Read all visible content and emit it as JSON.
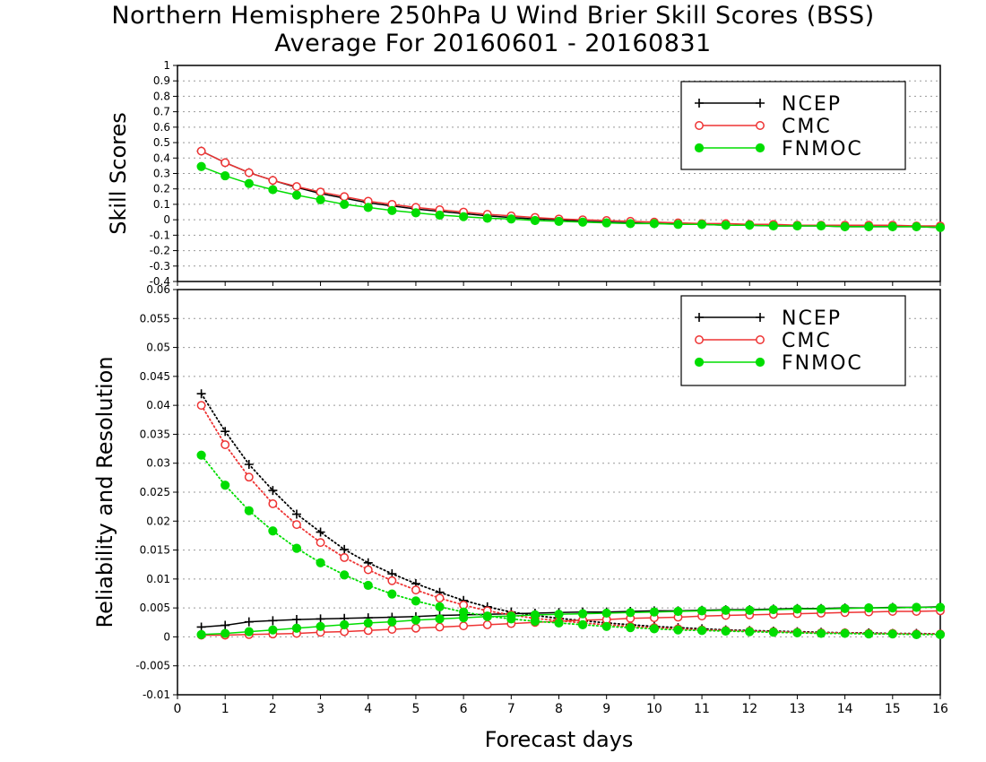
{
  "title": {
    "line1": "Northern Hemisphere 250hPa U Wind Brier Skill Scores (BSS)",
    "line2": "Average For 20160601 - 20160831"
  },
  "colors": {
    "NCEP": "#000000",
    "CMC": "#ee3333",
    "FNMOC": "#00dd00",
    "grid": "#999999"
  },
  "chart_data": [
    {
      "type": "line",
      "panel": "top",
      "xlabel": "",
      "ylabel": "Skill Scores",
      "xlim": [
        0,
        16
      ],
      "ylim": [
        -0.4,
        1
      ],
      "x_ticks": [
        0,
        1,
        2,
        3,
        4,
        5,
        6,
        7,
        8,
        9,
        10,
        11,
        12,
        13,
        14,
        15,
        16
      ],
      "y_ticks": [
        "-0.4",
        "-0.3",
        "-0.2",
        "-0.1",
        "0",
        "0.1",
        "0.2",
        "0.3",
        "0.4",
        "0.5",
        "0.6",
        "0.7",
        "0.8",
        "0.9",
        "1"
      ],
      "grid": true,
      "legend_position": "top-right",
      "x": [
        0.5,
        1,
        1.5,
        2,
        2.5,
        3,
        3.5,
        4,
        4.5,
        5,
        5.5,
        6,
        6.5,
        7,
        7.5,
        8,
        8.5,
        9,
        9.5,
        10,
        10.5,
        11,
        11.5,
        12,
        12.5,
        13,
        13.5,
        14,
        14.5,
        15,
        15.5,
        16
      ],
      "series": [
        {
          "name": "NCEP",
          "marker": "plus",
          "line": "solid",
          "values": [
            0.445,
            0.37,
            0.305,
            0.255,
            0.21,
            0.17,
            0.14,
            0.11,
            0.09,
            0.07,
            0.055,
            0.04,
            0.025,
            0.015,
            0.005,
            0.0,
            -0.01,
            -0.015,
            -0.02,
            -0.025,
            -0.025,
            -0.03,
            -0.035,
            -0.035,
            -0.04,
            -0.04,
            -0.04,
            -0.045,
            -0.045,
            -0.045,
            -0.045,
            -0.05
          ]
        },
        {
          "name": "CMC",
          "marker": "open-circle",
          "line": "solid",
          "values": [
            0.445,
            0.37,
            0.305,
            0.255,
            0.215,
            0.18,
            0.15,
            0.12,
            0.1,
            0.08,
            0.065,
            0.05,
            0.035,
            0.025,
            0.015,
            0.005,
            0.0,
            -0.005,
            -0.01,
            -0.015,
            -0.02,
            -0.025,
            -0.025,
            -0.03,
            -0.03,
            -0.035,
            -0.035,
            -0.035,
            -0.035,
            -0.035,
            -0.04,
            -0.04
          ]
        },
        {
          "name": "FNMOC",
          "marker": "filled-circle",
          "line": "solid",
          "values": [
            0.345,
            0.285,
            0.235,
            0.195,
            0.16,
            0.13,
            0.1,
            0.08,
            0.06,
            0.045,
            0.03,
            0.02,
            0.01,
            0.005,
            -0.005,
            -0.01,
            -0.015,
            -0.02,
            -0.025,
            -0.025,
            -0.03,
            -0.03,
            -0.035,
            -0.035,
            -0.04,
            -0.04,
            -0.04,
            -0.045,
            -0.045,
            -0.045,
            -0.045,
            -0.05
          ]
        }
      ]
    },
    {
      "type": "line",
      "panel": "bottom",
      "xlabel": "Forecast days",
      "ylabel": "Reliability and Resolution",
      "xlim": [
        0,
        16
      ],
      "ylim": [
        -0.01,
        0.06
      ],
      "x_ticks": [
        0,
        1,
        2,
        3,
        4,
        5,
        6,
        7,
        8,
        9,
        10,
        11,
        12,
        13,
        14,
        15,
        16
      ],
      "y_ticks": [
        "-0.01",
        "-0.005",
        "0",
        "0.005",
        "0.01",
        "0.015",
        "0.02",
        "0.025",
        "0.03",
        "0.035",
        "0.04",
        "0.045",
        "0.05",
        "0.055",
        "0.06"
      ],
      "grid": true,
      "legend_position": "top-right",
      "x": [
        0.5,
        1,
        1.5,
        2,
        2.5,
        3,
        3.5,
        4,
        4.5,
        5,
        5.5,
        6,
        6.5,
        7,
        7.5,
        8,
        8.5,
        9,
        9.5,
        10,
        10.5,
        11,
        11.5,
        12,
        12.5,
        13,
        13.5,
        14,
        14.5,
        15,
        15.5,
        16
      ],
      "series": [
        {
          "name": "NCEP",
          "component": "reliability",
          "marker": "plus",
          "line": "dotted",
          "values": [
            0.042,
            0.0355,
            0.0298,
            0.0253,
            0.0212,
            0.0181,
            0.0151,
            0.0128,
            0.0109,
            0.0092,
            0.0077,
            0.0063,
            0.0052,
            0.0043,
            0.0037,
            0.0032,
            0.0028,
            0.0024,
            0.0021,
            0.0018,
            0.0016,
            0.0014,
            0.0012,
            0.0011,
            0.001,
            0.0009,
            0.0008,
            0.0007,
            0.0007,
            0.0006,
            0.0006,
            0.0005
          ]
        },
        {
          "name": "NCEP",
          "component": "resolution",
          "marker": "plus",
          "line": "solid",
          "values": [
            0.0017,
            0.002,
            0.0026,
            0.0028,
            0.003,
            0.0031,
            0.0032,
            0.0033,
            0.0034,
            0.0035,
            0.0037,
            0.0038,
            0.0039,
            0.004,
            0.0041,
            0.0042,
            0.0043,
            0.0043,
            0.0044,
            0.0045,
            0.0045,
            0.0046,
            0.0047,
            0.0047,
            0.0048,
            0.0049,
            0.0049,
            0.005,
            0.005,
            0.0051,
            0.0051,
            0.0052
          ]
        },
        {
          "name": "CMC",
          "component": "reliability",
          "marker": "open-circle",
          "line": "dotted",
          "values": [
            0.04,
            0.0332,
            0.0276,
            0.023,
            0.0194,
            0.0163,
            0.0137,
            0.0116,
            0.0097,
            0.0081,
            0.0067,
            0.0055,
            0.0045,
            0.0038,
            0.0032,
            0.0028,
            0.0024,
            0.0021,
            0.0018,
            0.0016,
            0.0014,
            0.0012,
            0.0011,
            0.001,
            0.0009,
            0.0008,
            0.0007,
            0.0007,
            0.0006,
            0.0006,
            0.0005,
            0.0005
          ]
        },
        {
          "name": "CMC",
          "component": "resolution",
          "marker": "open-circle",
          "line": "solid",
          "values": [
            0.0003,
            0.0003,
            0.0004,
            0.0005,
            0.0006,
            0.0008,
            0.0009,
            0.0011,
            0.0013,
            0.0015,
            0.0017,
            0.0019,
            0.0021,
            0.0023,
            0.0025,
            0.0027,
            0.0029,
            0.003,
            0.0032,
            0.0033,
            0.0034,
            0.0036,
            0.0037,
            0.0038,
            0.0039,
            0.004,
            0.0041,
            0.0042,
            0.0043,
            0.0044,
            0.0044,
            0.0045
          ]
        },
        {
          "name": "FNMOC",
          "component": "reliability",
          "marker": "filled-circle",
          "line": "dotted",
          "values": [
            0.0314,
            0.0262,
            0.0218,
            0.0183,
            0.0153,
            0.0128,
            0.0107,
            0.0089,
            0.0074,
            0.0062,
            0.0052,
            0.0043,
            0.0036,
            0.0031,
            0.0027,
            0.0024,
            0.0021,
            0.0018,
            0.0016,
            0.0014,
            0.0012,
            0.0011,
            0.001,
            0.0009,
            0.0008,
            0.0007,
            0.0006,
            0.0006,
            0.0005,
            0.0005,
            0.0004,
            0.0004
          ]
        },
        {
          "name": "FNMOC",
          "component": "resolution",
          "marker": "filled-circle",
          "line": "solid",
          "values": [
            0.0004,
            0.0006,
            0.0009,
            0.0012,
            0.0015,
            0.0018,
            0.0021,
            0.0024,
            0.0026,
            0.0029,
            0.0031,
            0.0033,
            0.0035,
            0.0036,
            0.0038,
            0.0039,
            0.004,
            0.0041,
            0.0042,
            0.0043,
            0.0044,
            0.0045,
            0.0046,
            0.0046,
            0.0047,
            0.0048,
            0.0048,
            0.0049,
            0.005,
            0.005,
            0.0051,
            0.0051
          ]
        }
      ]
    }
  ]
}
